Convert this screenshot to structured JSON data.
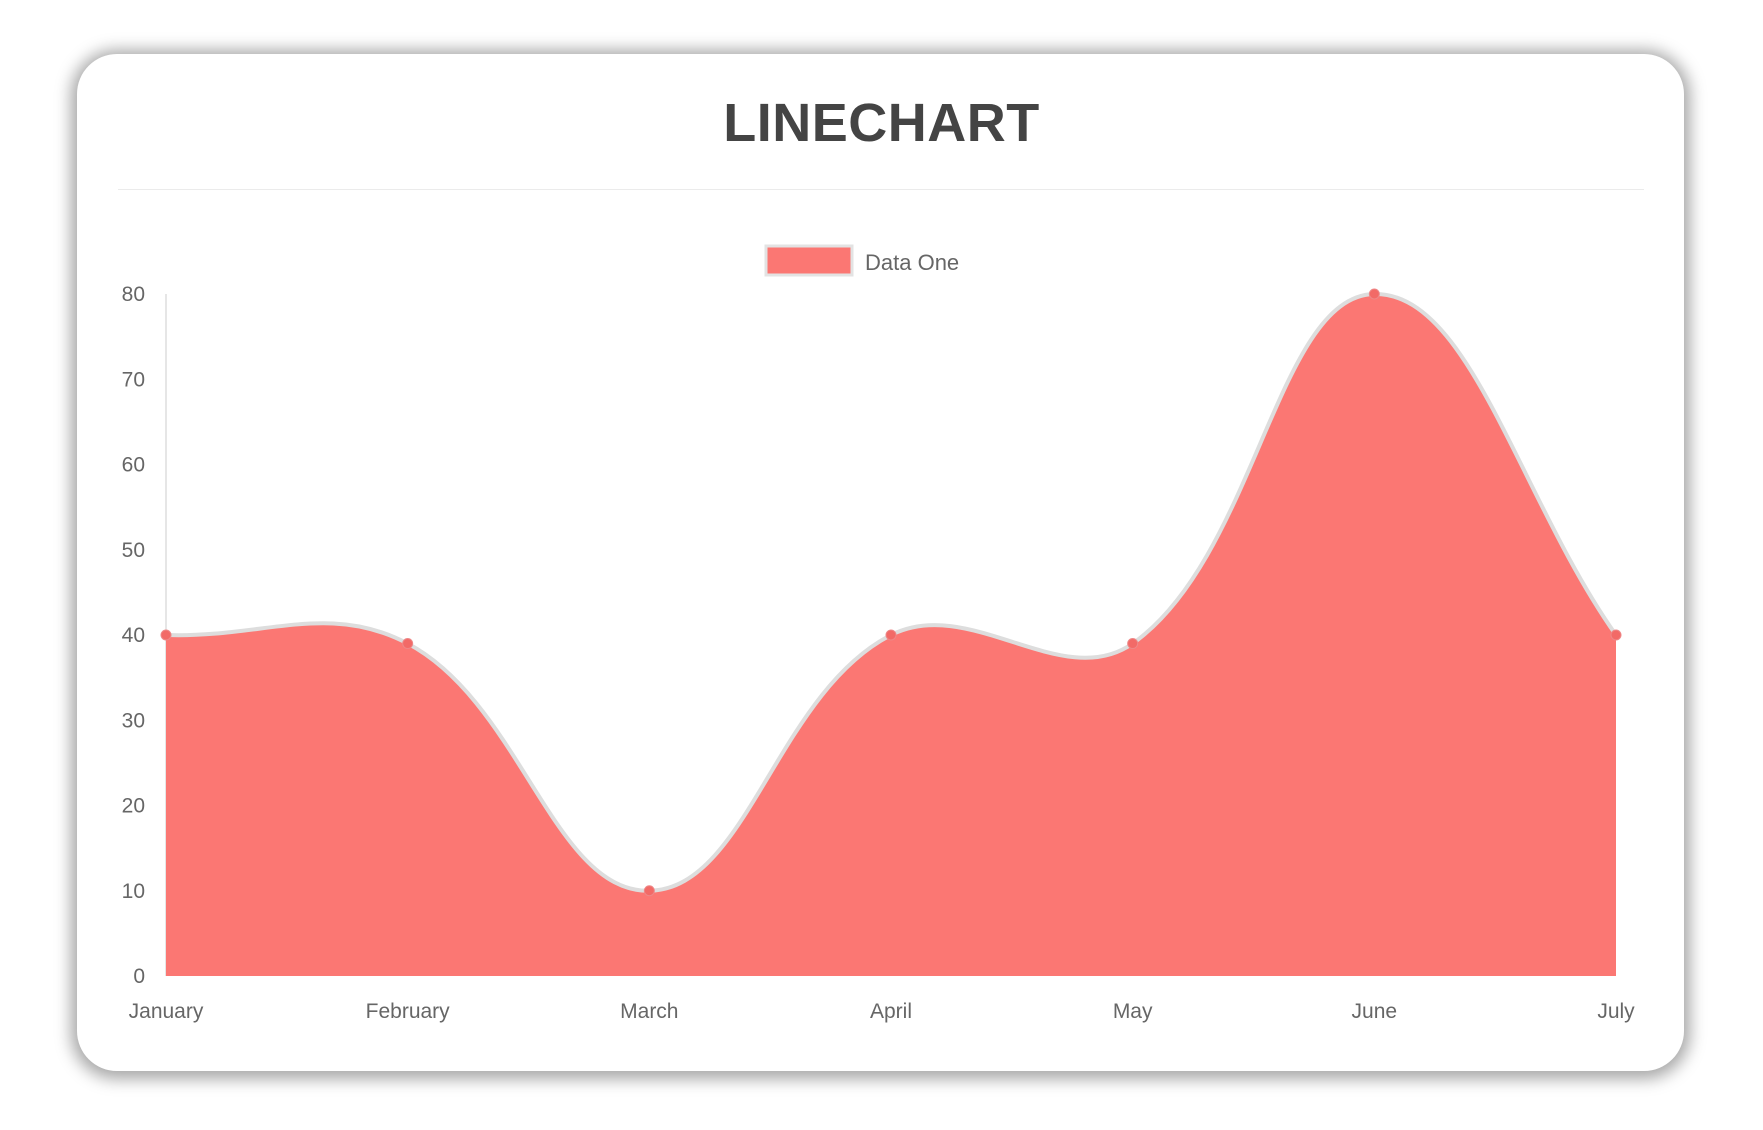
{
  "card": {
    "title": "LINECHART"
  },
  "chart_data": {
    "type": "area",
    "categories": [
      "January",
      "February",
      "March",
      "April",
      "May",
      "June",
      "July"
    ],
    "series": [
      {
        "name": "Data One",
        "values": [
          40,
          39,
          10,
          40,
          39,
          80,
          40
        ]
      }
    ],
    "ylim": [
      0,
      80
    ],
    "yticks": [
      0,
      10,
      20,
      30,
      40,
      50,
      60,
      70,
      80
    ],
    "legend": "top",
    "grid": false,
    "fill_color": "#fb7773",
    "line_color": "#dddddd",
    "point_color": "#f26a67",
    "curve": "smooth"
  }
}
